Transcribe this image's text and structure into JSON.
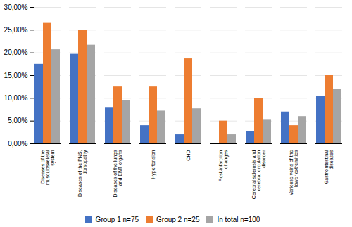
{
  "chart_data": {
    "type": "bar",
    "categories": [
      "Diseases of the\nmusculoskeletal\nsystem",
      "Diseases of the PNS,\ndorsopathy",
      "Diseases of the lungs\nand ENT organs",
      "Hypertension",
      "CHD",
      "Post-infarction\nchanges",
      "Cerebral sclerosis and\ncerebral circulation\ndisorder",
      "Varicose veins of the\nlower extremities",
      "Gastrointestinal\ndiseases"
    ],
    "series": [
      {
        "name": "Group 1 n=75",
        "color": "#4472C4",
        "values": [
          17.5,
          19.7,
          8.0,
          4.0,
          2.0,
          0.0,
          2.7,
          7.0,
          10.5
        ]
      },
      {
        "name": "Group 2 n=25",
        "color": "#ED7D31",
        "values": [
          26.5,
          25.0,
          12.5,
          12.5,
          18.7,
          5.0,
          10.0,
          4.0,
          15.0
        ]
      },
      {
        "name": "In total n=100",
        "color": "#A5A5A5",
        "values": [
          20.7,
          21.7,
          9.5,
          7.2,
          7.7,
          2.0,
          5.2,
          6.0,
          12.0
        ]
      }
    ],
    "ylim": [
      0,
      30
    ],
    "yticks": [
      {
        "value": 0,
        "label": "0,00%"
      },
      {
        "value": 5,
        "label": "5,00%"
      },
      {
        "value": 10,
        "label": "10,00%"
      },
      {
        "value": 15,
        "label": "15,00%"
      },
      {
        "value": 20,
        "label": "20,00%"
      },
      {
        "value": 25,
        "label": "25,00%"
      },
      {
        "value": 30,
        "label": "30,00%"
      }
    ],
    "grid": true,
    "legend": "bottom"
  }
}
